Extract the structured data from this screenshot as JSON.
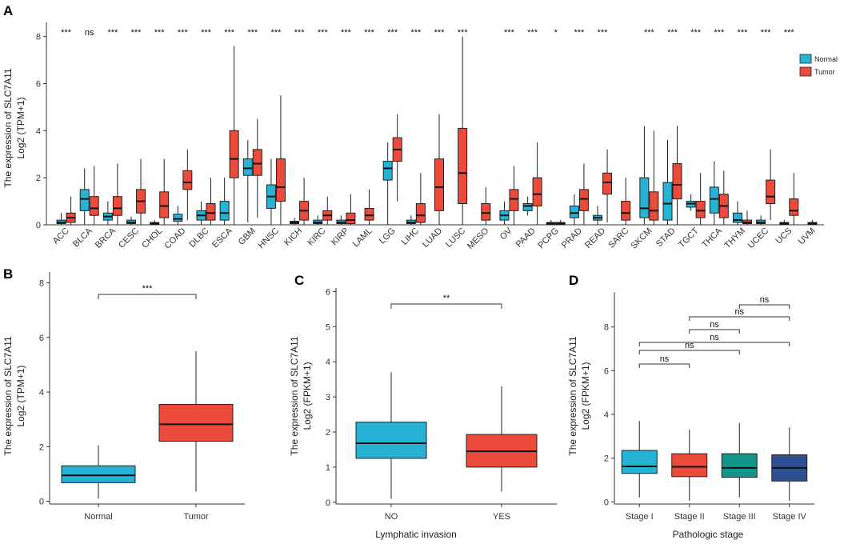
{
  "figure": {
    "panel_letters": [
      "A",
      "B",
      "C",
      "D"
    ]
  },
  "colors": {
    "normal": "#27b3d5",
    "tumor": "#ec4b3b",
    "stage3": "#12958a",
    "stage4": "#2f4f93",
    "box_stroke": "#222222"
  },
  "chart_data": [
    {
      "panel": "A",
      "type": "box",
      "ylabel_line1": "The expression of SLC7A11",
      "ylabel_line2": "Log2 (TPM+1)",
      "ylim": [
        0,
        8.6
      ],
      "yticks": [
        0,
        2,
        4,
        6,
        8
      ],
      "legend": {
        "position": "top-right",
        "entries": [
          "Normal",
          "Tumor"
        ]
      },
      "categories": [
        "ACC",
        "BLCA",
        "BRCA",
        "CESC",
        "CHOL",
        "COAD",
        "DLBC",
        "ESCA",
        "GBM",
        "HNSC",
        "KICH",
        "KIRC",
        "KIRP",
        "LAML",
        "LGG",
        "LIHC",
        "LUAD",
        "LUSC",
        "MESO",
        "OV",
        "PAAD",
        "PCPG",
        "PRAD",
        "READ",
        "SARC",
        "SKCM",
        "STAD",
        "TGCT",
        "THCA",
        "THYM",
        "UCEC",
        "UCS",
        "UVM"
      ],
      "significance": [
        "***",
        "ns",
        "***",
        "***",
        "***",
        "***",
        "***",
        "***",
        "***",
        "***",
        "***",
        "***",
        "***",
        "***",
        "***",
        "***",
        "***",
        "***",
        "",
        "***",
        "***",
        "*",
        "***",
        "***",
        "",
        "***",
        "***",
        "***",
        "***",
        "***",
        "***",
        "***",
        ""
      ],
      "series": [
        {
          "name": "Normal",
          "boxes": [
            [
              0,
              0.05,
              0.1,
              0.2,
              0.5
            ],
            [
              0,
              0.6,
              1.1,
              1.5,
              2.4
            ],
            [
              0,
              0.2,
              0.35,
              0.5,
              1
            ],
            [
              0,
              0.05,
              0.1,
              0.2,
              0.35
            ],
            [
              0,
              0.02,
              0.05,
              0.1,
              0.2
            ],
            [
              0,
              0.15,
              0.25,
              0.45,
              0.8
            ],
            [
              0,
              0.2,
              0.4,
              0.6,
              1
            ],
            [
              0,
              0.2,
              0.5,
              1,
              2
            ],
            [
              0.1,
              2.1,
              2.4,
              2.8,
              3.6
            ],
            [
              0,
              0.7,
              1.2,
              1.7,
              2.8
            ],
            [
              0,
              0.05,
              0.1,
              0.15,
              0.3
            ],
            [
              0,
              0.05,
              0.1,
              0.2,
              0.4
            ],
            [
              0,
              0.05,
              0.1,
              0.2,
              0.4
            ],
            null,
            [
              0,
              1.9,
              2.4,
              2.7,
              3.5
            ],
            [
              0,
              0.05,
              0.1,
              0.2,
              0.4
            ],
            null,
            null,
            null,
            [
              0,
              0.2,
              0.4,
              0.6,
              1
            ],
            [
              0.4,
              0.6,
              0.8,
              0.9,
              1.2
            ],
            [
              0,
              0.02,
              0.05,
              0.1,
              0.2
            ],
            [
              0,
              0.3,
              0.5,
              0.8,
              1.3
            ],
            [
              0,
              0.2,
              0.3,
              0.4,
              0.8
            ],
            null,
            [
              0,
              0.3,
              0.7,
              2,
              4.2
            ],
            [
              0,
              0.2,
              0.9,
              1.8,
              3.6
            ],
            [
              0.6,
              0.75,
              0.9,
              1,
              1.3
            ],
            [
              0,
              0.5,
              1.1,
              1.6,
              2.7
            ],
            [
              0,
              0.1,
              0.2,
              0.5,
              1
            ],
            [
              0,
              0.05,
              0.1,
              0.2,
              0.4
            ],
            [
              0,
              0.02,
              0.05,
              0.1,
              0.2
            ],
            null
          ]
        },
        {
          "name": "Tumor",
          "boxes": [
            [
              0,
              0.1,
              0.3,
              0.5,
              1.2
            ],
            [
              0,
              0.4,
              0.7,
              1.2,
              2.5
            ],
            [
              0,
              0.4,
              0.7,
              1.2,
              2.6
            ],
            [
              0,
              0.5,
              1,
              1.5,
              2.8
            ],
            [
              0,
              0.3,
              0.8,
              1.4,
              2.8
            ],
            [
              0.2,
              1.5,
              1.8,
              2.3,
              3.2
            ],
            [
              0,
              0.2,
              0.5,
              0.9,
              2
            ],
            [
              0,
              2,
              2.8,
              4,
              7.6
            ],
            [
              0.3,
              2.1,
              2.6,
              3.2,
              4.5
            ],
            [
              0,
              1,
              1.6,
              2.8,
              5.5
            ],
            [
              0,
              0.2,
              0.6,
              1,
              2
            ],
            [
              0,
              0.2,
              0.4,
              0.6,
              1.2
            ],
            [
              0,
              0.05,
              0.2,
              0.5,
              1.3
            ],
            [
              0,
              0.2,
              0.4,
              0.7,
              1.5
            ],
            [
              1,
              2.7,
              3.2,
              3.7,
              4.7
            ],
            [
              0,
              0.1,
              0.4,
              0.9,
              2.2
            ],
            [
              0,
              0.6,
              1.6,
              2.8,
              4.7
            ],
            [
              0,
              0.9,
              2.2,
              4.1,
              8
            ],
            [
              0,
              0.2,
              0.5,
              0.9,
              1.6
            ],
            [
              0,
              0.6,
              1.1,
              1.5,
              2.5
            ],
            [
              0,
              0.8,
              1.3,
              2,
              3.5
            ],
            [
              0,
              0.02,
              0.05,
              0.1,
              0.2
            ],
            [
              0,
              0.6,
              1.1,
              1.5,
              2.6
            ],
            [
              0.1,
              1.3,
              1.8,
              2.2,
              3.2
            ],
            [
              0,
              0.2,
              0.5,
              1,
              2
            ],
            [
              0,
              0.2,
              0.6,
              1.4,
              4
            ],
            [
              0,
              1.1,
              1.7,
              2.6,
              4.2
            ],
            [
              0,
              0.3,
              0.6,
              1,
              2.2
            ],
            [
              0,
              0.3,
              0.8,
              1.3,
              2.3
            ],
            [
              0,
              0.05,
              0.1,
              0.2,
              0.6
            ],
            [
              0.2,
              0.9,
              1.2,
              1.9,
              3.2
            ],
            [
              0,
              0.4,
              0.6,
              1.1,
              2.2
            ],
            [
              0,
              0.02,
              0.05,
              0.1,
              0.2
            ]
          ]
        }
      ]
    },
    {
      "panel": "B",
      "type": "box",
      "ylabel_line1": "The expression of SLC7A11",
      "ylabel_line2": "Log2 (TPM+1)",
      "ylim": [
        -0.1,
        8.4
      ],
      "yticks": [
        0,
        2,
        4,
        6,
        8
      ],
      "categories": [
        "Normal",
        "Tumor"
      ],
      "boxes": [
        [
          0.1,
          0.68,
          0.95,
          1.3,
          2.05
        ],
        [
          0.35,
          2.2,
          2.82,
          3.55,
          5.5
        ]
      ],
      "comparisons": [
        {
          "from": 0,
          "to": 1,
          "label": "***"
        }
      ]
    },
    {
      "panel": "C",
      "type": "box",
      "ylabel_line1": "The expression of SLC7A11",
      "ylabel_line2": "Log2 (FPKM+1)",
      "xlabel": "Lymphatic invasion",
      "ylim": [
        -0.05,
        6.1
      ],
      "yticks": [
        0,
        1,
        2,
        3,
        4,
        5,
        6
      ],
      "categories": [
        "NO",
        "YES"
      ],
      "boxes": [
        [
          0.1,
          1.25,
          1.68,
          2.28,
          3.7
        ],
        [
          0.3,
          1.0,
          1.45,
          1.93,
          3.3
        ]
      ],
      "comparisons": [
        {
          "from": 0,
          "to": 1,
          "label": "**"
        }
      ]
    },
    {
      "panel": "D",
      "type": "box",
      "ylabel_line1": "The expression of SLC7A11",
      "ylabel_line2": "Log2 (FPKM+1)",
      "xlabel": "Pathologic stage",
      "ylim": [
        -0.1,
        9.6
      ],
      "yticks": [
        0,
        2,
        4,
        6,
        8
      ],
      "categories": [
        "Stage I",
        "Stage II",
        "Stage III",
        "Stage IV"
      ],
      "boxes": [
        [
          0.2,
          1.3,
          1.62,
          2.35,
          3.7
        ],
        [
          0.05,
          1.15,
          1.6,
          2.2,
          3.3
        ],
        [
          0.2,
          1.12,
          1.55,
          2.2,
          3.6
        ],
        [
          0.05,
          0.95,
          1.55,
          2.15,
          3.4
        ]
      ],
      "comparisons": [
        {
          "from": 0,
          "to": 1,
          "label": "ns"
        },
        {
          "from": 0,
          "to": 2,
          "label": "ns"
        },
        {
          "from": 0,
          "to": 3,
          "label": "ns"
        },
        {
          "from": 1,
          "to": 2,
          "label": "ns"
        },
        {
          "from": 1,
          "to": 3,
          "label": "ns"
        },
        {
          "from": 2,
          "to": 3,
          "label": "ns"
        }
      ]
    }
  ]
}
